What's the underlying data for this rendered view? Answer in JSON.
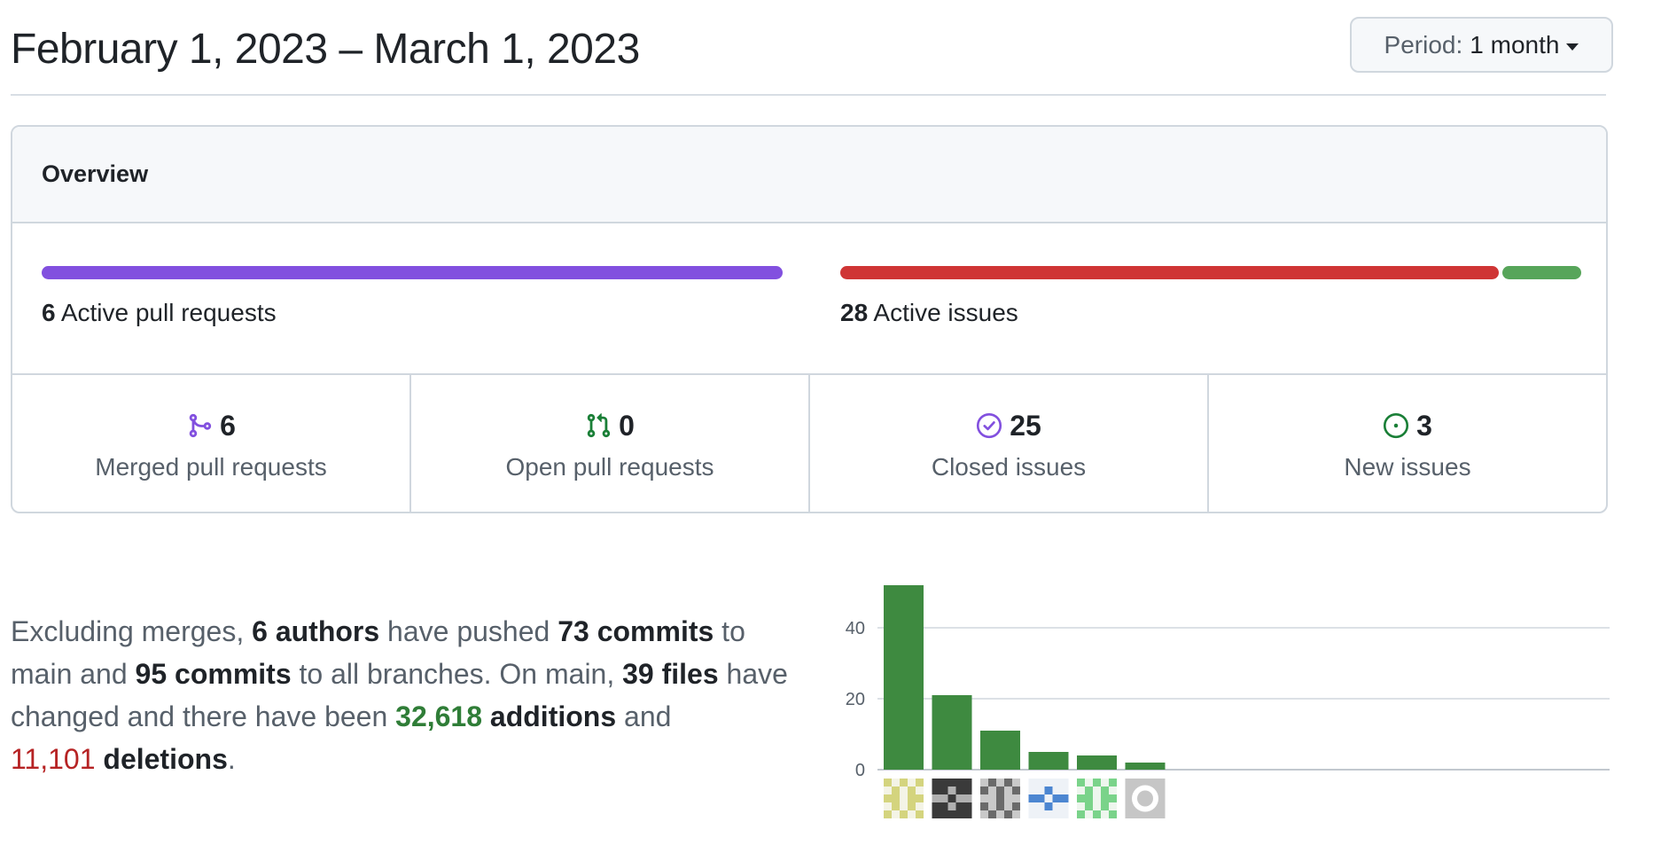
{
  "header": {
    "title": "February 1, 2023 – March 1, 2023",
    "period_label": "Period:",
    "period_value": "1 month"
  },
  "overview": {
    "title": "Overview",
    "pull_requests": {
      "count": "6",
      "label": "Active pull requests",
      "merged_fraction": 1.0,
      "color": "#8250df"
    },
    "issues": {
      "count": "28",
      "label": "Active issues",
      "closed_count": 25,
      "new_count": 3,
      "closed_color": "#cf3535",
      "new_color": "#57a55a"
    },
    "stats": [
      {
        "icon": "merge-icon",
        "value": "6",
        "label": "Merged pull requests",
        "color": "#8250df"
      },
      {
        "icon": "pull-request-icon",
        "value": "0",
        "label": "Open pull requests",
        "color": "#1a7f37"
      },
      {
        "icon": "issue-closed-icon",
        "value": "25",
        "label": "Closed issues",
        "color": "#8250df"
      },
      {
        "icon": "issue-opened-icon",
        "value": "3",
        "label": "New issues",
        "color": "#1a7f37"
      }
    ]
  },
  "summary": {
    "p1": "Excluding merges, ",
    "authors": "6 authors",
    "p2": " have pushed ",
    "commits_main": "73 commits",
    "p3": " to main and ",
    "commits_all": "95 commits",
    "p4": " to all branches. On main, ",
    "files": "39 files",
    "p5": " have changed and there have been ",
    "additions_num": "32,618",
    "additions_word": "additions",
    "p6": " and ",
    "deletions_num": "11,101",
    "deletions_word": "deletions",
    "p7": "."
  },
  "chart_data": {
    "type": "bar",
    "categories": [
      "author-1",
      "author-2",
      "author-3",
      "author-4",
      "author-5",
      "author-6"
    ],
    "values": [
      52,
      21,
      11,
      5,
      4,
      2
    ],
    "ylim": [
      0,
      52
    ],
    "yticks": [
      "0",
      "20",
      "40"
    ],
    "bar_color": "#3e8a40",
    "grid": true,
    "xlabel": "",
    "ylabel": ""
  }
}
